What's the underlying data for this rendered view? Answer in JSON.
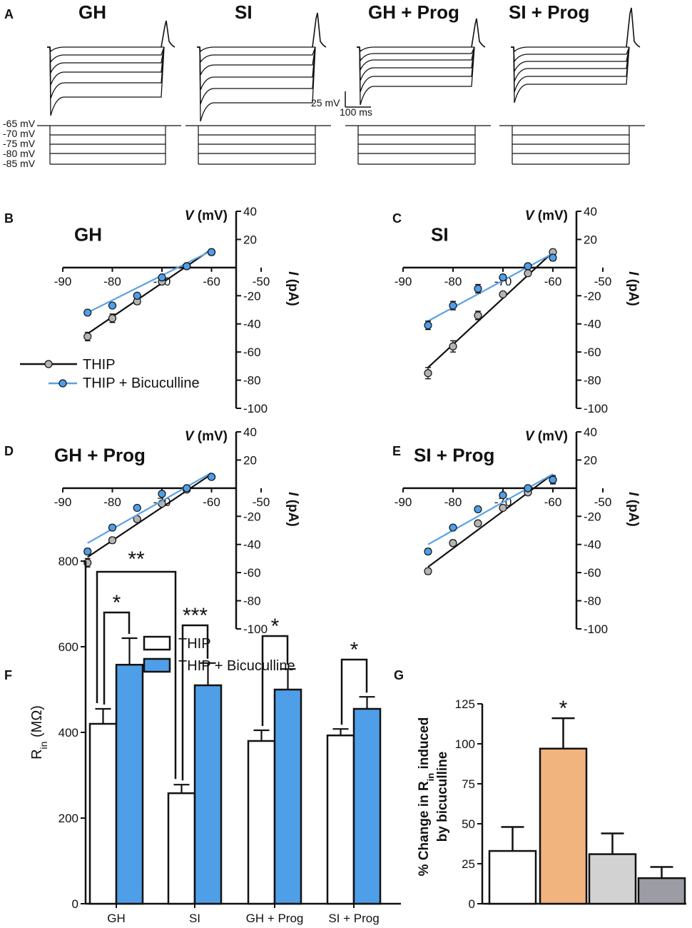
{
  "colors": {
    "thip": "#ffffff",
    "bic": "#4f9ee8",
    "bic_line": "#5aa0e6",
    "gray_marker": "#b4b4b4",
    "orange": "#f2b47e",
    "light_gray": "#d2d2d2",
    "dark_gray": "#9c9ca4",
    "axis": "#111111"
  },
  "chart_data": [
    {
      "panel": "A",
      "type": "line",
      "description_kind": "voltage traces",
      "titles": [
        "GH",
        "SI",
        "GH + Prog",
        "SI + Prog"
      ],
      "step_labels": [
        "-65 mV",
        "-70 mV",
        "-75 mV",
        "-80 mV",
        "-85 mV"
      ],
      "scale_bar": {
        "voltage": "25 mV",
        "time": "100 ms"
      }
    },
    {
      "panel": "B",
      "type": "line",
      "title": "GH",
      "xlabel_italic": "V",
      "xlabel_unit": " (mV)",
      "ylabel_italic": "I",
      "ylabel_unit": " (pA)",
      "xlim": [
        -90,
        -50
      ],
      "ylim": [
        -100,
        40
      ],
      "xticks": [
        -90,
        -80,
        -70,
        -60,
        -50
      ],
      "yticks": [
        40,
        20,
        -20,
        -40,
        -60,
        -80,
        -100
      ],
      "legend": [
        "THIP",
        "THIP + Bicuculline"
      ],
      "series": [
        {
          "name": "THIP",
          "x": [
            -85,
            -80,
            -75,
            -70,
            -65,
            -60
          ],
          "y": [
            -49,
            -36,
            -24,
            -10,
            1,
            11
          ],
          "err": [
            3,
            3,
            2,
            1,
            1,
            2
          ],
          "fit": [
            [
              -85,
              -47
            ],
            [
              -60,
              13
            ]
          ]
        },
        {
          "name": "THIP + Bicuculline",
          "x": [
            -85,
            -80,
            -75,
            -70,
            -65,
            -60
          ],
          "y": [
            -32,
            -27,
            -20,
            -7,
            1,
            11
          ],
          "err": [
            1,
            1,
            1,
            1,
            1,
            2
          ],
          "fit": [
            [
              -85,
              -32
            ],
            [
              -60,
              12
            ]
          ]
        }
      ]
    },
    {
      "panel": "C",
      "type": "line",
      "title": "SI",
      "xlabel_italic": "V",
      "xlabel_unit": " (mV)",
      "ylabel_italic": "I",
      "ylabel_unit": " (pA)",
      "xlim": [
        -90,
        -50
      ],
      "ylim": [
        -100,
        40
      ],
      "xticks": [
        -90,
        -80,
        -70,
        -60,
        -50
      ],
      "yticks": [
        40,
        20,
        -20,
        -40,
        -60,
        -80,
        -100
      ],
      "series": [
        {
          "name": "THIP",
          "x": [
            -85,
            -80,
            -75,
            -70,
            -65,
            -60
          ],
          "y": [
            -75,
            -56,
            -34,
            -19,
            -4,
            11
          ],
          "err": [
            4,
            4,
            3,
            1,
            1,
            2
          ],
          "fit": [
            [
              -85,
              -71
            ],
            [
              -60,
              11
            ]
          ]
        },
        {
          "name": "THIP + Bicuculline",
          "x": [
            -85,
            -80,
            -75,
            -70,
            -65,
            -60
          ],
          "y": [
            -41,
            -27,
            -15,
            -7,
            1,
            7
          ],
          "err": [
            3,
            3,
            3,
            2,
            1,
            2
          ],
          "fit": [
            [
              -85,
              -38
            ],
            [
              -60,
              10
            ]
          ]
        }
      ]
    },
    {
      "panel": "D",
      "type": "line",
      "title": "GH + Prog",
      "xlabel_italic": "V",
      "xlabel_unit": " (mV)",
      "ylabel_italic": "I",
      "ylabel_unit": " (pA)",
      "xlim": [
        -90,
        -50
      ],
      "ylim": [
        -100,
        40
      ],
      "xticks": [
        -90,
        -80,
        -70,
        -60,
        -50
      ],
      "yticks": [
        40,
        20,
        -20,
        -40,
        -60,
        -80,
        -100
      ],
      "series": [
        {
          "name": "THIP",
          "x": [
            -85,
            -80,
            -75,
            -70,
            -65,
            -60
          ],
          "y": [
            -53,
            -37,
            -22,
            -11,
            -1,
            8
          ],
          "err": [
            3,
            2,
            1,
            1,
            1,
            1
          ],
          "fit": [
            [
              -85,
              -49
            ],
            [
              -60,
              10
            ]
          ]
        },
        {
          "name": "THIP + Bicuculline",
          "x": [
            -85,
            -80,
            -75,
            -70,
            -65,
            -60
          ],
          "y": [
            -45,
            -28,
            -14,
            -4,
            0,
            8
          ],
          "err": [
            2,
            1,
            1,
            1,
            1,
            1
          ],
          "fit": [
            [
              -85,
              -39
            ],
            [
              -60,
              11
            ]
          ]
        }
      ]
    },
    {
      "panel": "E",
      "type": "line",
      "title": "SI + Prog",
      "xlabel_italic": "V",
      "xlabel_unit": " (mV)",
      "ylabel_italic": "I",
      "ylabel_unit": " (pA)",
      "xlim": [
        -90,
        -50
      ],
      "ylim": [
        -100,
        40
      ],
      "xticks": [
        -90,
        -80,
        -70,
        -60,
        -50
      ],
      "yticks": [
        40,
        20,
        -20,
        -40,
        -60,
        -80,
        -100
      ],
      "series": [
        {
          "name": "THIP",
          "x": [
            -85,
            -80,
            -75,
            -70,
            -65,
            -60
          ],
          "y": [
            -59,
            -39,
            -25,
            -14,
            -3,
            6
          ],
          "err": [
            2,
            2,
            1,
            1,
            1,
            3
          ],
          "fit": [
            [
              -85,
              -56
            ],
            [
              -60,
              10
            ]
          ]
        },
        {
          "name": "THIP + Bicuculline",
          "x": [
            -85,
            -80,
            -75,
            -70,
            -65,
            -60
          ],
          "y": [
            -45,
            -28,
            -15,
            -5,
            0,
            6
          ],
          "err": [
            2,
            1,
            1,
            1,
            1,
            2
          ],
          "fit": [
            [
              -85,
              -40
            ],
            [
              -60,
              10
            ]
          ]
        }
      ]
    },
    {
      "panel": "F",
      "type": "bar",
      "categories": [
        "GH",
        "SI",
        "GH + Prog",
        "SI + Prog"
      ],
      "ylabel_main": "R",
      "ylabel_sub": "in",
      "ylabel_unit": " (MΩ)",
      "ylim": [
        0,
        800
      ],
      "yticks": [
        0,
        200,
        400,
        600,
        800
      ],
      "legend": [
        "THIP",
        "THIP + Bicuculline"
      ],
      "series": [
        {
          "name": "THIP",
          "values": [
            420,
            258,
            380,
            393
          ],
          "err": [
            35,
            20,
            25,
            15
          ]
        },
        {
          "name": "THIP + Bicuculline",
          "values": [
            558,
            510,
            500,
            455
          ],
          "err": [
            62,
            52,
            48,
            28
          ]
        }
      ],
      "annotations": [
        "**",
        "*",
        "***",
        "*",
        "*"
      ]
    },
    {
      "panel": "G",
      "type": "bar",
      "ylabel_pre": "% Change in R",
      "ylabel_sub": "in",
      "ylabel_post": " induced",
      "ylabel_line2": "by bicuculline",
      "ylim": [
        0,
        125
      ],
      "yticks": [
        0,
        25,
        50,
        75,
        100,
        125
      ],
      "values": [
        33,
        97,
        31,
        16
      ],
      "err": [
        15,
        19,
        13,
        7
      ],
      "annotations": [
        "*"
      ]
    }
  ]
}
